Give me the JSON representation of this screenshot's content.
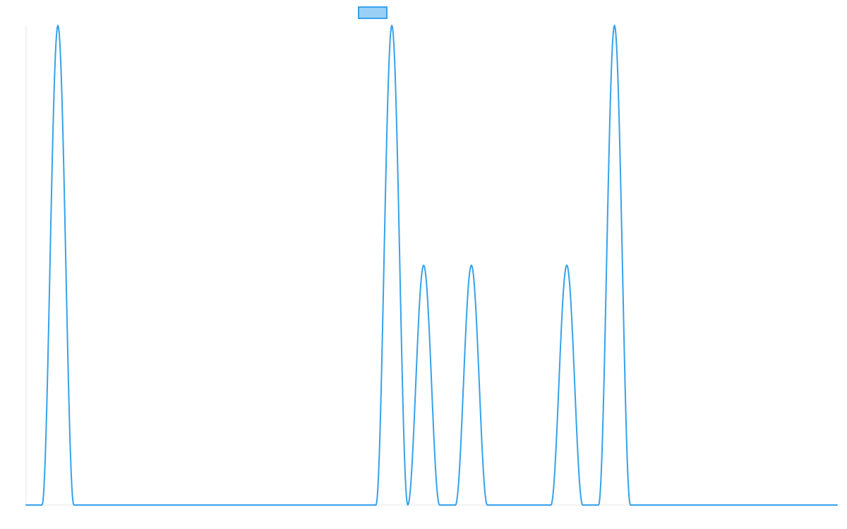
{
  "colors": {
    "series_line": "#36a2eb",
    "legend_fill": "#9ad0f5",
    "axis_line": "#e5e5e5",
    "background": "#ffffff"
  },
  "chart_data": {
    "type": "line",
    "title": "",
    "xlabel": "",
    "ylabel": "",
    "grid": false,
    "legend_position": "top",
    "xlim": [
      0,
      51
    ],
    "ylim": [
      0,
      2
    ],
    "x": [
      0,
      1,
      2,
      3,
      4,
      5,
      6,
      7,
      8,
      9,
      10,
      11,
      12,
      13,
      14,
      15,
      16,
      17,
      18,
      19,
      20,
      21,
      22,
      23,
      24,
      25,
      26,
      27,
      28,
      29,
      30,
      31,
      32,
      33,
      34,
      35,
      36,
      37,
      38,
      39,
      40,
      41,
      42,
      43,
      44,
      45,
      46,
      47,
      48,
      49,
      50,
      51
    ],
    "series": [
      {
        "name": "",
        "values": [
          0,
          0,
          2,
          0,
          0,
          0,
          0,
          0,
          0,
          0,
          0,
          0,
          0,
          0,
          0,
          0,
          0,
          0,
          0,
          0,
          0,
          0,
          0,
          2,
          0,
          1,
          0,
          0,
          1,
          0,
          0,
          0,
          0,
          0,
          1,
          0,
          0,
          2,
          0,
          0,
          0,
          0,
          0,
          0,
          0,
          0,
          0,
          0,
          0,
          0,
          0,
          0
        ]
      }
    ]
  }
}
